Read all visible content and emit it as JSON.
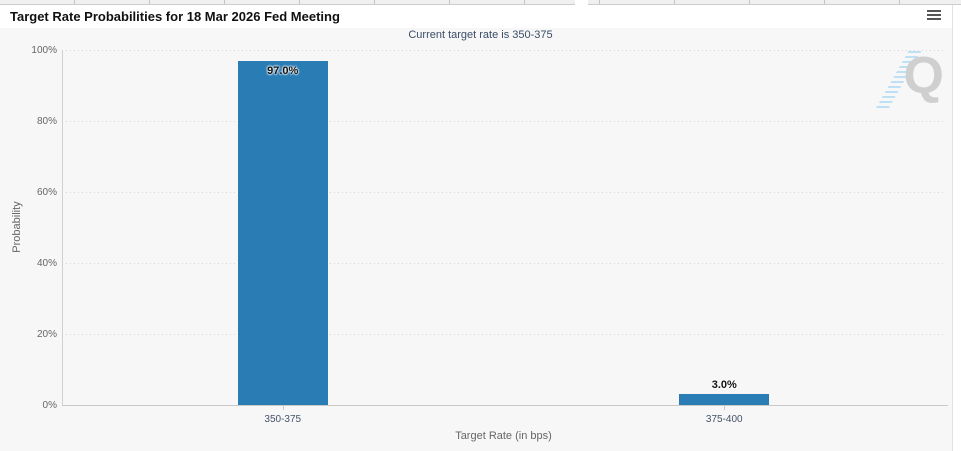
{
  "header": {
    "title": "Target Rate Probabilities for 18 Mar 2026 Fed Meeting",
    "menu_icon": "hamburger-icon"
  },
  "chart_data": {
    "type": "bar",
    "title": "Target Rate Probabilities for 18 Mar 2026 Fed Meeting",
    "subtitle": "Current target rate is 350-375",
    "categories": [
      "350-375",
      "375-400"
    ],
    "values": [
      97.0,
      3.0
    ],
    "value_labels": [
      "97.0%",
      "3.0%"
    ],
    "xlabel": "Target Rate (in bps)",
    "ylabel": "Probability",
    "ylim": [
      0,
      100
    ],
    "yticks": [
      0,
      20,
      40,
      60,
      80,
      100
    ],
    "ytick_labels": [
      "0%",
      "20%",
      "40%",
      "60%",
      "80%",
      "100%"
    ],
    "grid": "dotted-horizontal",
    "legend": "none",
    "bar_color": "#2a7cb5",
    "watermark_letter": "Q"
  },
  "colors": {
    "chart_background": "#f7f7f7",
    "header_background": "#ffffff",
    "bar": "#2a7cb5",
    "subtitle_text": "#3b4d66",
    "axis_text": "#666666",
    "watermark_gray": "#c9c9c9",
    "watermark_blue": "#b3dcf4"
  }
}
